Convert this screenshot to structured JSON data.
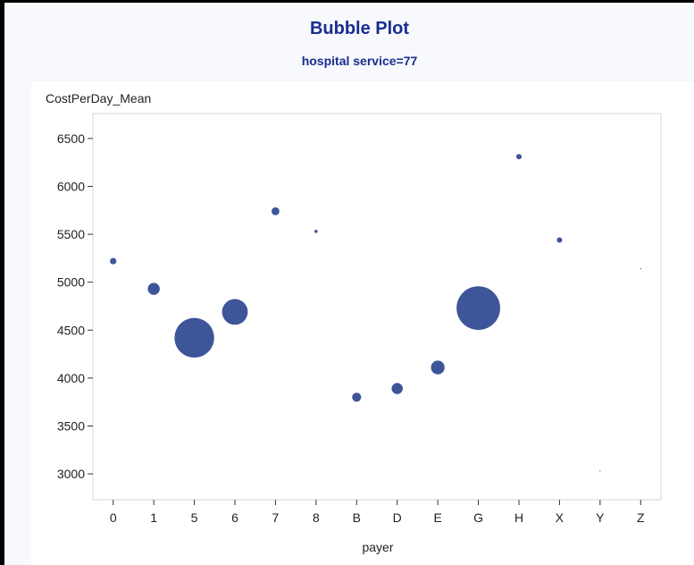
{
  "title": "Bubble Plot",
  "subtitle": "hospital service=77",
  "colors": {
    "bubble": "#3f5599",
    "title": "#1a2d8f",
    "plot_border": "#d6d6d6"
  },
  "chart_data": {
    "type": "scatter",
    "title": "Bubble Plot",
    "subtitle": "hospital service=77",
    "xlabel": "payer",
    "ylabel": "CostPerDay_Mean",
    "categories": [
      "0",
      "1",
      "5",
      "6",
      "7",
      "8",
      "B",
      "D",
      "E",
      "G",
      "H",
      "X",
      "Y",
      "Z"
    ],
    "y_ticks": [
      3000,
      3500,
      4000,
      4500,
      5000,
      5500,
      6000,
      6500
    ],
    "ylim": [
      2730,
      6760
    ],
    "grid": false,
    "series": [
      {
        "points": [
          {
            "x": "0",
            "y": 5220,
            "size": 1.0
          },
          {
            "x": "1",
            "y": 4930,
            "size": 3.5
          },
          {
            "x": "5",
            "y": 4420,
            "size": 38
          },
          {
            "x": "6",
            "y": 4690,
            "size": 16
          },
          {
            "x": "7",
            "y": 5740,
            "size": 1.5
          },
          {
            "x": "8",
            "y": 5530,
            "size": 0.25
          },
          {
            "x": "B",
            "y": 3800,
            "size": 2.0
          },
          {
            "x": "D",
            "y": 3890,
            "size": 3.0
          },
          {
            "x": "E",
            "y": 4110,
            "size": 4.5
          },
          {
            "x": "G",
            "y": 4730,
            "size": 46
          },
          {
            "x": "H",
            "y": 6310,
            "size": 0.7
          },
          {
            "x": "X",
            "y": 5440,
            "size": 0.7
          },
          {
            "x": "Y",
            "y": 3030,
            "size": 0.03
          },
          {
            "x": "Z",
            "y": 5140,
            "size": 0.03
          }
        ]
      }
    ]
  }
}
